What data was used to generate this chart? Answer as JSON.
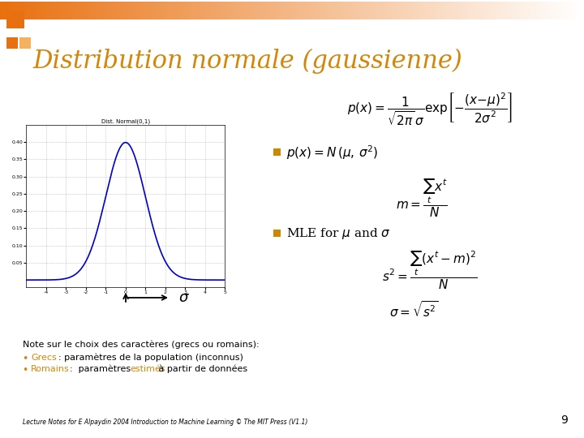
{
  "title": "Distribution normale (gaussienne)",
  "title_color": "#D4860A",
  "title_fontsize": 22,
  "bg_color": "#FFFFFF",
  "slide_number": "9",
  "bullet_color": "#CC8800",
  "note_title": "Note sur le choix des caractères (grecs ou romains):",
  "note_line1_text": ": paramètres de la population (inconnus)",
  "note_line2a": ":  paramètres ",
  "note_line2b": "estimés",
  "note_line2c": " à partir de données",
  "footer": "Lecture Notes for E Alpaydin 2004 Introduction to Machine Learning © The MIT Press (V1.1)",
  "plot_line_color": "#0000CC",
  "orange_color": "#D4860A",
  "header_color1": "#E87010",
  "header_color2": "#F5B060"
}
